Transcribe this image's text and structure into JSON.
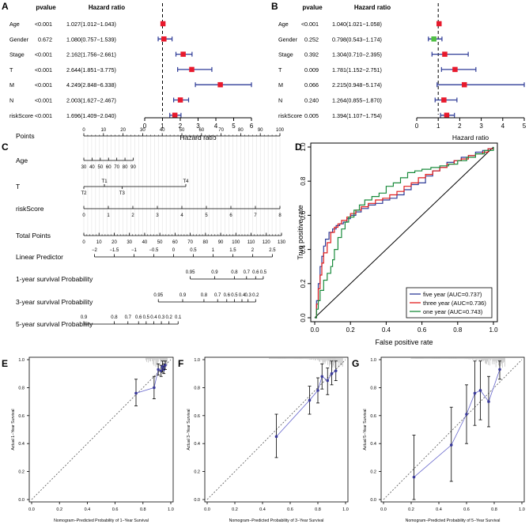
{
  "panels": {
    "A": {
      "letter": "A"
    },
    "B": {
      "letter": "B"
    },
    "C": {
      "letter": "C"
    },
    "D": {
      "letter": "D"
    },
    "E": {
      "letter": "E"
    },
    "F": {
      "letter": "F"
    },
    "G": {
      "letter": "G"
    }
  },
  "chart_data": [
    {
      "panel": "A",
      "type": "forest",
      "col_headers": {
        "pvalue": "pvalue",
        "hr": "Hazard ratio"
      },
      "xlabel": "Hazard ratio",
      "xlim": [
        0,
        6
      ],
      "xticks": [
        0,
        1,
        2,
        3,
        4,
        5,
        6
      ],
      "reference_line": 1,
      "rows": [
        {
          "name": "Age",
          "pvalue": "<0.001",
          "hr_text": "1.027(1.012−1.043)",
          "hr": 1.027,
          "lo": 1.012,
          "hi": 1.043
        },
        {
          "name": "Gender",
          "pvalue": "0.672",
          "hr_text": "1.080(0.757−1.539)",
          "hr": 1.08,
          "lo": 0.757,
          "hi": 1.539
        },
        {
          "name": "Stage",
          "pvalue": "<0.001",
          "hr_text": "2.162(1.756−2.661)",
          "hr": 2.162,
          "lo": 1.756,
          "hi": 2.661
        },
        {
          "name": "T",
          "pvalue": "<0.001",
          "hr_text": "2.644(1.851−3.775)",
          "hr": 2.644,
          "lo": 1.851,
          "hi": 3.775
        },
        {
          "name": "M",
          "pvalue": "<0.001",
          "hr_text": "4.249(2.848−6.338)",
          "hr": 4.249,
          "lo": 2.848,
          "hi": 6.338
        },
        {
          "name": "N",
          "pvalue": "<0.001",
          "hr_text": "2.003(1.627−2.467)",
          "hr": 2.003,
          "lo": 1.627,
          "hi": 2.467
        },
        {
          "name": "riskScore",
          "pvalue": "<0.001",
          "hr_text": "1.696(1.409−2.040)",
          "hr": 1.696,
          "lo": 1.409,
          "hi": 2.04
        }
      ]
    },
    {
      "panel": "B",
      "type": "forest",
      "col_headers": {
        "pvalue": "pvalue",
        "hr": "Hazard ratio"
      },
      "xlabel": "Hazard ratio",
      "xlim": [
        0,
        5
      ],
      "xticks": [
        0,
        1,
        2,
        3,
        4,
        5
      ],
      "reference_line": 1,
      "rows": [
        {
          "name": "Age",
          "pvalue": "<0.001",
          "hr_text": "1.040(1.021−1.058)",
          "hr": 1.04,
          "lo": 1.021,
          "hi": 1.058
        },
        {
          "name": "Gender",
          "pvalue": "0.252",
          "hr_text": "0.798(0.543−1.174)",
          "hr": 0.798,
          "lo": 0.543,
          "hi": 1.174
        },
        {
          "name": "Stage",
          "pvalue": "0.392",
          "hr_text": "1.304(0.710−2.395)",
          "hr": 1.304,
          "lo": 0.71,
          "hi": 2.395
        },
        {
          "name": "T",
          "pvalue": "0.009",
          "hr_text": "1.781(1.152−2.751)",
          "hr": 1.781,
          "lo": 1.152,
          "hi": 2.751
        },
        {
          "name": "M",
          "pvalue": "0.066",
          "hr_text": "2.215(0.948−5.174)",
          "hr": 2.215,
          "lo": 0.948,
          "hi": 5.174
        },
        {
          "name": "N",
          "pvalue": "0.240",
          "hr_text": "1.264(0.855−1.870)",
          "hr": 1.264,
          "lo": 0.855,
          "hi": 1.87
        },
        {
          "name": "riskScore",
          "pvalue": "0.005",
          "hr_text": "1.394(1.107−1.754)",
          "hr": 1.394,
          "lo": 1.107,
          "hi": 1.754
        }
      ]
    },
    {
      "panel": "C",
      "type": "nomogram",
      "rows": [
        {
          "label": "Points",
          "ticks": [
            "0",
            "10",
            "20",
            "30",
            "40",
            "50",
            "60",
            "70",
            "80",
            "90",
            "100"
          ],
          "values": [
            0,
            10,
            20,
            30,
            40,
            50,
            60,
            70,
            80,
            90,
            100
          ],
          "scale": "points"
        },
        {
          "label": "Age",
          "ticks": [
            "30",
            "40",
            "50",
            "60",
            "70",
            "80",
            "90"
          ],
          "values": [
            0,
            4.2,
            8.4,
            12.6,
            16.8,
            21,
            25.2
          ],
          "scale": "points"
        },
        {
          "label": "T",
          "ticks_top": [
            "T1",
            "T4"
          ],
          "values_top": [
            10.5,
            52
          ],
          "ticks_bottom": [
            "T2",
            "T3"
          ],
          "values_bottom": [
            0,
            19.5
          ],
          "scale": "points"
        },
        {
          "label": "riskScore",
          "ticks": [
            "0",
            "1",
            "2",
            "3",
            "4",
            "5",
            "6",
            "7",
            "8"
          ],
          "values": [
            0,
            12.5,
            25,
            37.5,
            50,
            62.5,
            75,
            87.5,
            100
          ],
          "scale": "points"
        },
        {
          "label": "Total Points",
          "ticks": [
            "0",
            "10",
            "20",
            "30",
            "40",
            "50",
            "60",
            "70",
            "80",
            "90",
            "100",
            "110",
            "120",
            "130"
          ],
          "values": [
            0,
            10,
            20,
            30,
            40,
            50,
            60,
            70,
            80,
            90,
            100,
            110,
            120,
            130
          ],
          "scale": "total"
        },
        {
          "label": "Linear Predictor",
          "ticks": [
            "−2",
            "−1.5",
            "−1",
            "−0.5",
            "0",
            "0.5",
            "1",
            "1.5",
            "2",
            "2.5"
          ],
          "values": [
            7,
            20,
            33,
            46,
            59,
            72,
            85,
            98,
            111,
            124
          ],
          "scale": "total"
        },
        {
          "label": "1-year survival Probability",
          "ticks": [
            "0.95",
            "0.9",
            "0.8",
            "0.7",
            "0.6",
            "0.5"
          ],
          "values": [
            70,
            86,
            99,
            107,
            113,
            118
          ],
          "scale": "total"
        },
        {
          "label": "3-year survival Probability",
          "ticks": [
            "0.95",
            "0.9",
            "0.8",
            "0.7",
            "0.6",
            "0.5",
            "0.4",
            "0.3",
            "0.2"
          ],
          "values": [
            49,
            65,
            79,
            88,
            94,
            99,
            104,
            108,
            113
          ],
          "scale": "total"
        },
        {
          "label": "5-year survival Probability",
          "ticks": [
            "0.9",
            "0.8",
            "0.7",
            "0.6",
            "0.5",
            "0.4",
            "0.3",
            "0.2",
            "0.1"
          ],
          "values": [
            0,
            20,
            29,
            36,
            41,
            46,
            51,
            56,
            62
          ],
          "scale": "total"
        }
      ]
    },
    {
      "panel": "D",
      "type": "line",
      "xlabel": "False positive rate",
      "ylabel": "True positive rate",
      "xlim": [
        0,
        1
      ],
      "ylim": [
        0,
        1
      ],
      "xticks": [
        "0.0",
        "0.2",
        "0.4",
        "0.6",
        "0.8",
        "1.0"
      ],
      "yticks": [
        "0.0",
        "0.2",
        "0.4",
        "0.6",
        "0.8",
        "1.0"
      ],
      "legend_position": "bottom-right",
      "series": [
        {
          "name": "five year (AUC=0.737)",
          "color": "#2e3b97",
          "x": [
            0,
            0.01,
            0.02,
            0.03,
            0.04,
            0.05,
            0.06,
            0.08,
            0.1,
            0.12,
            0.14,
            0.16,
            0.18,
            0.2,
            0.23,
            0.26,
            0.3,
            0.34,
            0.38,
            0.42,
            0.46,
            0.5,
            0.54,
            0.58,
            0.62,
            0.66,
            0.7,
            0.74,
            0.78,
            0.82,
            0.86,
            0.9,
            0.94,
            0.97,
            1.0
          ],
          "y": [
            0,
            0.1,
            0.2,
            0.3,
            0.36,
            0.42,
            0.46,
            0.5,
            0.52,
            0.54,
            0.55,
            0.56,
            0.58,
            0.6,
            0.62,
            0.64,
            0.66,
            0.67,
            0.69,
            0.7,
            0.72,
            0.75,
            0.78,
            0.79,
            0.83,
            0.86,
            0.88,
            0.91,
            0.92,
            0.94,
            0.95,
            0.97,
            0.98,
            0.99,
            1.0
          ]
        },
        {
          "name": "three year (AUC=0.736)",
          "color": "#e11d1d",
          "x": [
            0,
            0.01,
            0.02,
            0.03,
            0.04,
            0.05,
            0.07,
            0.09,
            0.11,
            0.13,
            0.15,
            0.18,
            0.2,
            0.23,
            0.26,
            0.3,
            0.34,
            0.38,
            0.42,
            0.46,
            0.5,
            0.54,
            0.58,
            0.62,
            0.66,
            0.7,
            0.74,
            0.78,
            0.82,
            0.86,
            0.9,
            0.94,
            0.97,
            1.0
          ],
          "y": [
            0,
            0.08,
            0.17,
            0.25,
            0.32,
            0.38,
            0.44,
            0.5,
            0.53,
            0.55,
            0.57,
            0.59,
            0.61,
            0.63,
            0.65,
            0.67,
            0.69,
            0.7,
            0.72,
            0.74,
            0.77,
            0.79,
            0.82,
            0.84,
            0.86,
            0.88,
            0.9,
            0.92,
            0.93,
            0.95,
            0.96,
            0.97,
            0.99,
            1.0
          ]
        },
        {
          "name": "one year (AUC=0.743)",
          "color": "#1a8b3c",
          "x": [
            0,
            0.01,
            0.02,
            0.03,
            0.05,
            0.07,
            0.09,
            0.1,
            0.11,
            0.13,
            0.15,
            0.17,
            0.19,
            0.22,
            0.25,
            0.28,
            0.32,
            0.36,
            0.4,
            0.44,
            0.48,
            0.52,
            0.56,
            0.6,
            0.65,
            0.7,
            0.75,
            0.8,
            0.85,
            0.9,
            0.95,
            1.0
          ],
          "y": [
            0,
            0.05,
            0.1,
            0.16,
            0.22,
            0.26,
            0.3,
            0.34,
            0.4,
            0.47,
            0.52,
            0.56,
            0.59,
            0.63,
            0.66,
            0.69,
            0.71,
            0.73,
            0.77,
            0.79,
            0.82,
            0.85,
            0.86,
            0.87,
            0.88,
            0.89,
            0.9,
            0.92,
            0.94,
            0.96,
            0.98,
            1.0
          ]
        }
      ]
    },
    {
      "panel": "E",
      "type": "scatter",
      "xlabel": "Nomogram−Predicted Probability of 1−Year Survival",
      "ylabel": "Actual 1−Year Survival",
      "xlim": [
        0,
        1
      ],
      "ylim": [
        0,
        1
      ],
      "xticks": [
        "0.0",
        "0.2",
        "0.4",
        "0.6",
        "0.8",
        "1.0"
      ],
      "yticks": [
        "0.0",
        "0.2",
        "0.4",
        "0.6",
        "0.8",
        "1.0"
      ],
      "points": [
        {
          "x": 0.75,
          "y": 0.76,
          "lo": 0.67,
          "hi": 0.86
        },
        {
          "x": 0.88,
          "y": 0.8,
          "lo": 0.72,
          "hi": 0.88
        },
        {
          "x": 0.91,
          "y": 0.93,
          "lo": 0.89,
          "hi": 0.97
        },
        {
          "x": 0.93,
          "y": 0.92,
          "lo": 0.88,
          "hi": 0.96
        },
        {
          "x": 0.94,
          "y": 0.95,
          "lo": 0.91,
          "hi": 0.99
        },
        {
          "x": 0.95,
          "y": 0.93,
          "lo": 0.9,
          "hi": 0.97
        },
        {
          "x": 0.96,
          "y": 0.96,
          "lo": 0.93,
          "hi": 0.99
        }
      ]
    },
    {
      "panel": "F",
      "type": "scatter",
      "xlabel": "Nomogram−Predicted Probability of 3−Year Survival",
      "ylabel": "Actual 3−Year Survival",
      "xlim": [
        0,
        1
      ],
      "ylim": [
        0,
        1
      ],
      "xticks": [
        "0.0",
        "0.2",
        "0.4",
        "0.6",
        "0.8",
        "1.0"
      ],
      "yticks": [
        "0.0",
        "0.2",
        "0.4",
        "0.6",
        "0.8",
        "1.0"
      ],
      "points": [
        {
          "x": 0.5,
          "y": 0.45,
          "lo": 0.3,
          "hi": 0.61
        },
        {
          "x": 0.74,
          "y": 0.71,
          "lo": 0.61,
          "hi": 0.81
        },
        {
          "x": 0.8,
          "y": 0.78,
          "lo": 0.69,
          "hi": 0.87
        },
        {
          "x": 0.83,
          "y": 0.88,
          "lo": 0.79,
          "hi": 0.97
        },
        {
          "x": 0.87,
          "y": 0.85,
          "lo": 0.75,
          "hi": 0.94
        },
        {
          "x": 0.9,
          "y": 0.9,
          "lo": 0.82,
          "hi": 0.99
        },
        {
          "x": 0.93,
          "y": 0.92,
          "lo": 0.85,
          "hi": 0.99
        }
      ]
    },
    {
      "panel": "G",
      "type": "scatter",
      "xlabel": "Nomogram−Predicted Probability of 5−Year Survival",
      "ylabel": "Actual 5−Year Survival",
      "xlim": [
        0,
        1
      ],
      "ylim": [
        0,
        1
      ],
      "xticks": [
        "0.0",
        "0.2",
        "0.4",
        "0.6",
        "0.8",
        "1.0"
      ],
      "yticks": [
        "0.0",
        "0.2",
        "0.4",
        "0.6",
        "0.8",
        "1.0"
      ],
      "points": [
        {
          "x": 0.22,
          "y": 0.16,
          "lo": 0.0,
          "hi": 0.46
        },
        {
          "x": 0.49,
          "y": 0.39,
          "lo": 0.13,
          "hi": 0.66
        },
        {
          "x": 0.6,
          "y": 0.61,
          "lo": 0.4,
          "hi": 0.82
        },
        {
          "x": 0.66,
          "y": 0.76,
          "lo": 0.53,
          "hi": 0.99
        },
        {
          "x": 0.7,
          "y": 0.78,
          "lo": 0.57,
          "hi": 0.99
        },
        {
          "x": 0.76,
          "y": 0.7,
          "lo": 0.52,
          "hi": 0.88
        },
        {
          "x": 0.84,
          "y": 0.93,
          "lo": 0.86,
          "hi": 0.99
        }
      ]
    }
  ]
}
